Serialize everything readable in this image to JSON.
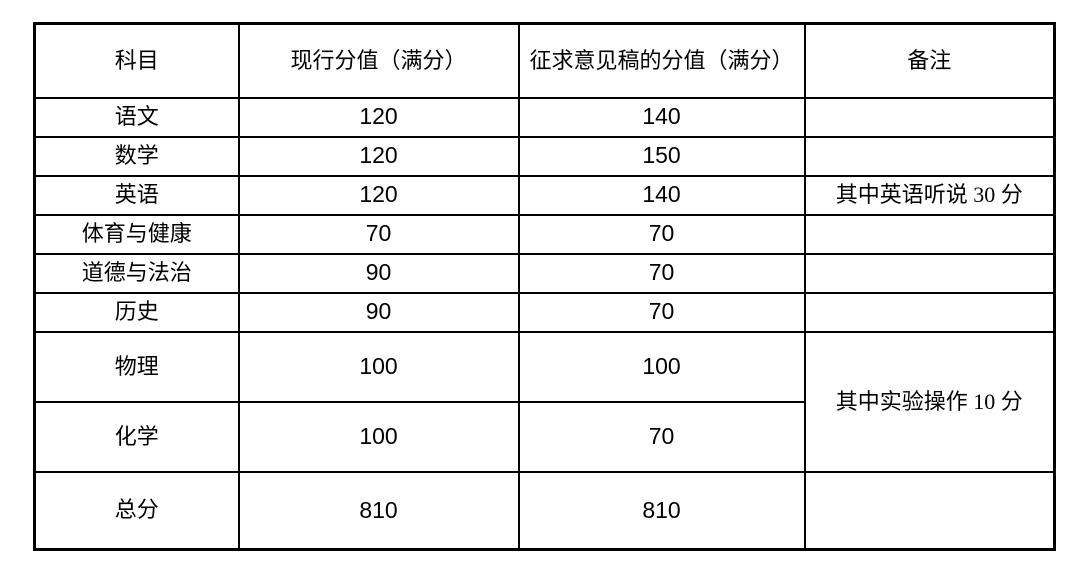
{
  "table": {
    "headers": {
      "subject": "科目",
      "current": "现行分值（满分）",
      "proposed": "征求意见稿的分值（满分）",
      "remark": "备注"
    },
    "rows": [
      {
        "subject": "语文",
        "current": "120",
        "proposed": "140",
        "remark": ""
      },
      {
        "subject": "数学",
        "current": "120",
        "proposed": "150",
        "remark": ""
      },
      {
        "subject": "英语",
        "current": "120",
        "proposed": "140",
        "remark": "其中英语听说 30 分"
      },
      {
        "subject": "体育与健康",
        "current": "70",
        "proposed": "70",
        "remark": ""
      },
      {
        "subject": "道德与法治",
        "current": "90",
        "proposed": "70",
        "remark": ""
      },
      {
        "subject": "历史",
        "current": "90",
        "proposed": "70",
        "remark": ""
      },
      {
        "subject": "物理",
        "current": "100",
        "proposed": "100",
        "remark": "其中实验操作 10 分"
      },
      {
        "subject": "化学",
        "current": "100",
        "proposed": "70"
      },
      {
        "subject": "总分",
        "current": "810",
        "proposed": "810",
        "remark": ""
      }
    ]
  },
  "chart_data": {
    "type": "table",
    "title": "",
    "columns": [
      "科目",
      "现行分值（满分）",
      "征求意见稿的分值（满分）",
      "备注"
    ],
    "rows": [
      [
        "语文",
        120,
        140,
        ""
      ],
      [
        "数学",
        120,
        150,
        ""
      ],
      [
        "英语",
        120,
        140,
        "其中英语听说 30 分"
      ],
      [
        "体育与健康",
        70,
        70,
        ""
      ],
      [
        "道德与法治",
        90,
        70,
        ""
      ],
      [
        "历史",
        90,
        70,
        ""
      ],
      [
        "物理",
        100,
        100,
        "其中实验操作 10 分"
      ],
      [
        "化学",
        100,
        70,
        "其中实验操作 10 分"
      ],
      [
        "总分",
        810,
        810,
        ""
      ]
    ]
  }
}
